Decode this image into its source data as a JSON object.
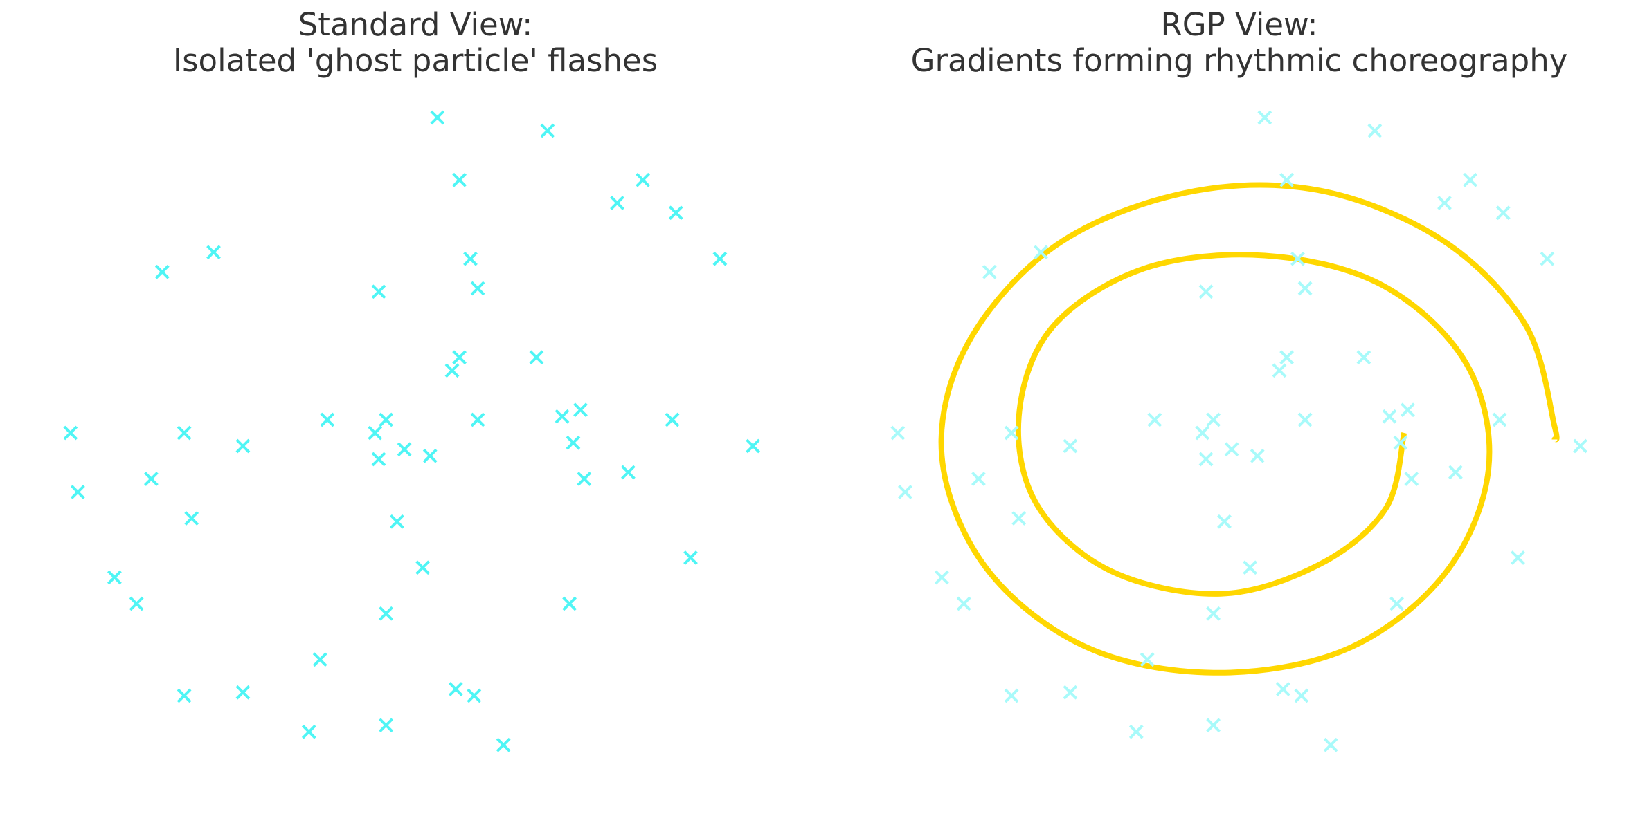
{
  "colors": {
    "background": "#ffffff",
    "title": "#333333",
    "particle": "#4ff5f5",
    "particle_faded": "#a8fafa",
    "spiral": "#ffd700"
  },
  "chart_data": [
    {
      "type": "scatter",
      "title_line1": "Standard View:",
      "title_line2": "Isolated 'ghost particle' flashes",
      "marker": "x",
      "grid": false,
      "axes_visible": false,
      "xlim": [
        -1.0,
        1.0
      ],
      "ylim": [
        -1.0,
        1.0
      ],
      "points": [
        [
          0.06,
          1.0
        ],
        [
          0.36,
          0.96
        ],
        [
          0.12,
          0.81
        ],
        [
          0.62,
          0.81
        ],
        [
          0.55,
          0.74
        ],
        [
          0.71,
          0.71
        ],
        [
          -0.55,
          0.59
        ],
        [
          -0.69,
          0.53
        ],
        [
          0.15,
          0.57
        ],
        [
          0.83,
          0.57
        ],
        [
          -0.1,
          0.47
        ],
        [
          0.17,
          0.48
        ],
        [
          0.12,
          0.27
        ],
        [
          0.33,
          0.27
        ],
        [
          0.1,
          0.23
        ],
        [
          -0.24,
          0.08
        ],
        [
          -0.08,
          0.08
        ],
        [
          0.17,
          0.08
        ],
        [
          0.4,
          0.09
        ],
        [
          0.45,
          0.11
        ],
        [
          0.7,
          0.08
        ],
        [
          -0.11,
          0.04
        ],
        [
          -0.94,
          0.04
        ],
        [
          -0.63,
          0.04
        ],
        [
          -0.47,
          0.0
        ],
        [
          0.43,
          0.01
        ],
        [
          0.92,
          0.0
        ],
        [
          -0.03,
          -0.01
        ],
        [
          0.04,
          -0.03
        ],
        [
          -0.1,
          -0.04
        ],
        [
          0.58,
          -0.08
        ],
        [
          -0.72,
          -0.1
        ],
        [
          0.46,
          -0.1
        ],
        [
          -0.92,
          -0.14
        ],
        [
          -0.61,
          -0.22
        ],
        [
          -0.05,
          -0.23
        ],
        [
          -0.82,
          -0.4
        ],
        [
          -0.76,
          -0.48
        ],
        [
          0.02,
          -0.37
        ],
        [
          0.75,
          -0.34
        ],
        [
          0.42,
          -0.48
        ],
        [
          -0.08,
          -0.51
        ],
        [
          -0.26,
          -0.65
        ],
        [
          -0.63,
          -0.76
        ],
        [
          -0.47,
          -0.75
        ],
        [
          0.11,
          -0.74
        ],
        [
          0.16,
          -0.76
        ],
        [
          -0.29,
          -0.87
        ],
        [
          -0.08,
          -0.85
        ],
        [
          0.24,
          -0.91
        ]
      ]
    },
    {
      "type": "scatter",
      "title_line1": "RGP View:",
      "title_line2": "Gradients forming rhythmic choreography",
      "marker": "x",
      "grid": false,
      "axes_visible": false,
      "xlim": [
        -1.0,
        1.0
      ],
      "ylim": [
        -1.0,
        1.0
      ],
      "points": [
        [
          0.06,
          1.0
        ],
        [
          0.36,
          0.96
        ],
        [
          0.12,
          0.81
        ],
        [
          0.62,
          0.81
        ],
        [
          0.55,
          0.74
        ],
        [
          0.71,
          0.71
        ],
        [
          -0.55,
          0.59
        ],
        [
          -0.69,
          0.53
        ],
        [
          0.15,
          0.57
        ],
        [
          0.83,
          0.57
        ],
        [
          -0.1,
          0.47
        ],
        [
          0.17,
          0.48
        ],
        [
          0.12,
          0.27
        ],
        [
          0.33,
          0.27
        ],
        [
          0.1,
          0.23
        ],
        [
          -0.24,
          0.08
        ],
        [
          -0.08,
          0.08
        ],
        [
          0.17,
          0.08
        ],
        [
          0.4,
          0.09
        ],
        [
          0.45,
          0.11
        ],
        [
          0.7,
          0.08
        ],
        [
          -0.11,
          0.04
        ],
        [
          -0.94,
          0.04
        ],
        [
          -0.63,
          0.04
        ],
        [
          -0.47,
          0.0
        ],
        [
          0.43,
          0.01
        ],
        [
          0.92,
          0.0
        ],
        [
          -0.03,
          -0.01
        ],
        [
          0.04,
          -0.03
        ],
        [
          -0.1,
          -0.04
        ],
        [
          0.58,
          -0.08
        ],
        [
          -0.72,
          -0.1
        ],
        [
          0.46,
          -0.1
        ],
        [
          -0.92,
          -0.14
        ],
        [
          -0.61,
          -0.22
        ],
        [
          -0.05,
          -0.23
        ],
        [
          -0.82,
          -0.4
        ],
        [
          -0.76,
          -0.48
        ],
        [
          0.02,
          -0.37
        ],
        [
          0.75,
          -0.34
        ],
        [
          0.42,
          -0.48
        ],
        [
          -0.08,
          -0.51
        ],
        [
          -0.26,
          -0.65
        ],
        [
          -0.63,
          -0.76
        ],
        [
          -0.47,
          -0.75
        ],
        [
          0.11,
          -0.74
        ],
        [
          0.16,
          -0.76
        ],
        [
          -0.29,
          -0.87
        ],
        [
          -0.08,
          -0.85
        ],
        [
          0.24,
          -0.91
        ]
      ],
      "spiral": {
        "type": "line",
        "description_visible": false,
        "center": [
          0.03,
          0.04
        ],
        "points": [
          [
            0.44,
            0.04
          ],
          [
            0.39,
            -0.19
          ],
          [
            0.21,
            -0.36
          ],
          [
            -0.06,
            -0.45
          ],
          [
            -0.36,
            -0.38
          ],
          [
            -0.56,
            -0.18
          ],
          [
            -0.61,
            0.09
          ],
          [
            -0.52,
            0.36
          ],
          [
            -0.27,
            0.54
          ],
          [
            0.06,
            0.58
          ],
          [
            0.38,
            0.49
          ],
          [
            0.61,
            0.25
          ],
          [
            0.67,
            -0.07
          ],
          [
            0.55,
            -0.39
          ],
          [
            0.28,
            -0.62
          ],
          [
            -0.08,
            -0.69
          ],
          [
            -0.43,
            -0.61
          ],
          [
            -0.7,
            -0.37
          ],
          [
            -0.82,
            -0.03
          ],
          [
            -0.75,
            0.31
          ],
          [
            -0.51,
            0.61
          ],
          [
            -0.16,
            0.77
          ],
          [
            0.2,
            0.78
          ],
          [
            0.54,
            0.63
          ],
          [
            0.77,
            0.37
          ],
          [
            0.85,
            0.06
          ],
          [
            0.85,
            0.02
          ]
        ]
      }
    }
  ]
}
